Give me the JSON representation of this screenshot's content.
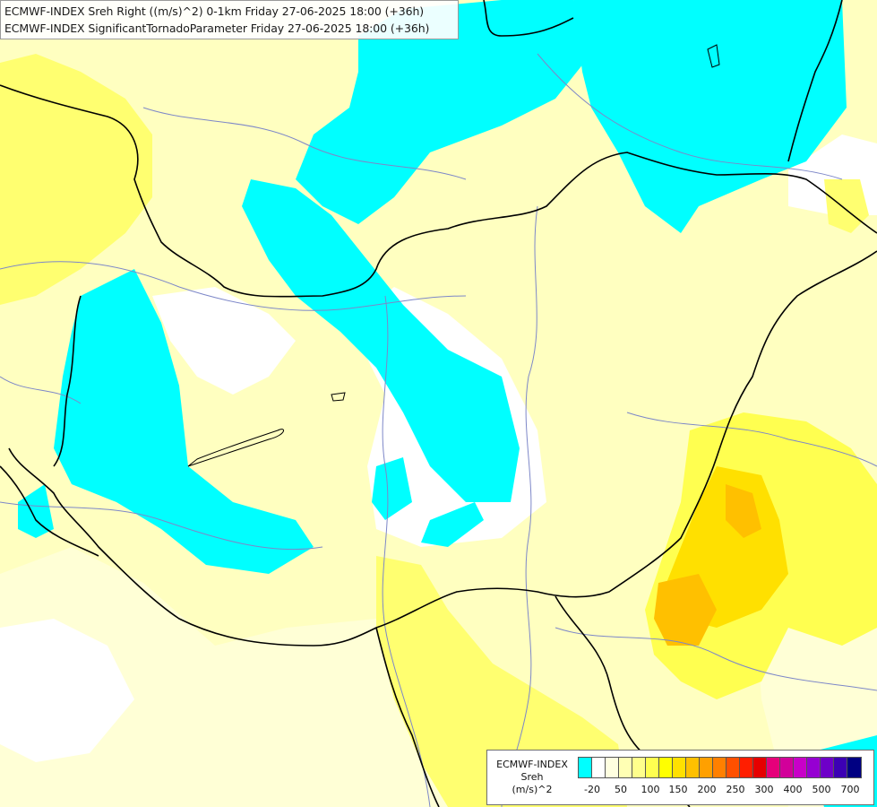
{
  "title": {
    "line1": "ECMWF-INDEX Sreh Right ((m/s)^2) 0-1km Friday 27-06-2025 18:00 (+36h)",
    "line2": "ECMWF-INDEX SignificantTornadoParameter Friday 27-06-2025 18:00 (+36h)"
  },
  "legend": {
    "source": "ECMWF-INDEX",
    "variable": "Sreh",
    "unit": "(m/s)^2",
    "colors": [
      "#00ffff",
      "#ffffff",
      "#ffffe0",
      "#ffffb4",
      "#ffff8c",
      "#ffff50",
      "#ffff00",
      "#ffe000",
      "#ffc000",
      "#ffa000",
      "#ff8000",
      "#ff5000",
      "#ff1e00",
      "#e60000",
      "#e6007a",
      "#d2009a",
      "#c800c8",
      "#9600d2",
      "#6e00c8",
      "#3c00b4",
      "#000082"
    ],
    "ticks": [
      "-20",
      "50",
      "100",
      "150",
      "200",
      "250",
      "300",
      "400",
      "500",
      "700"
    ]
  }
}
